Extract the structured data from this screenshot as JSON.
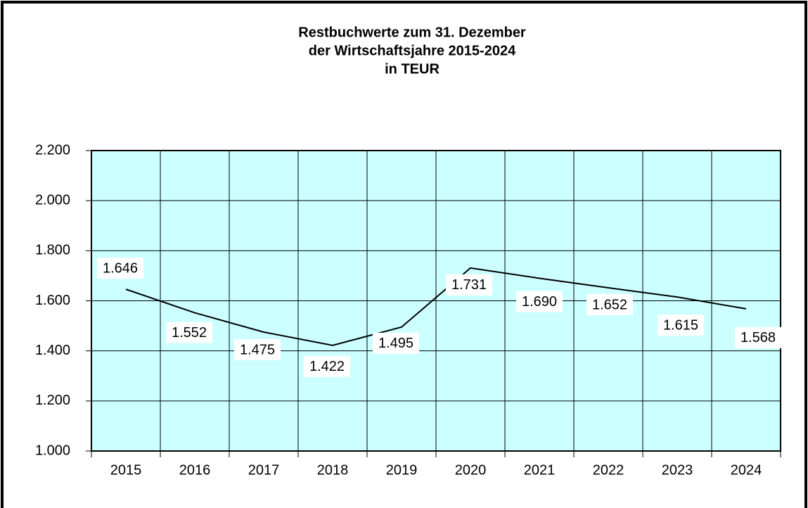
{
  "chart_data": {
    "type": "line",
    "title": [
      "Restbuchwerte zum 31. Dezember",
      "der Wirtschaftsjahre 2015-2024",
      "in TEUR"
    ],
    "categories": [
      "2015",
      "2016",
      "2017",
      "2018",
      "2019",
      "2020",
      "2021",
      "2022",
      "2023",
      "2024"
    ],
    "series": [
      {
        "name": "Restbuchwerte",
        "color": "#000000",
        "values": [
          1646,
          1552,
          1475,
          1422,
          1495,
          1731,
          1690,
          1652,
          1615,
          1568
        ],
        "value_labels": [
          "1.646",
          "1.552",
          "1.475",
          "1.422",
          "1.495",
          "1.731",
          "1.690",
          "1.652",
          "1.615",
          "1.568"
        ]
      }
    ],
    "ylim": [
      1000,
      2200
    ],
    "yticks": [
      {
        "value": 1000,
        "label": "1.000"
      },
      {
        "value": 1200,
        "label": "1.200"
      },
      {
        "value": 1400,
        "label": "1.400"
      },
      {
        "value": 1600,
        "label": "1.600"
      },
      {
        "value": 1800,
        "label": "1.800"
      },
      {
        "value": 2000,
        "label": "2.000"
      },
      {
        "value": 2200,
        "label": "2.200"
      }
    ],
    "grid": true,
    "plot_background": "#ccffff"
  }
}
